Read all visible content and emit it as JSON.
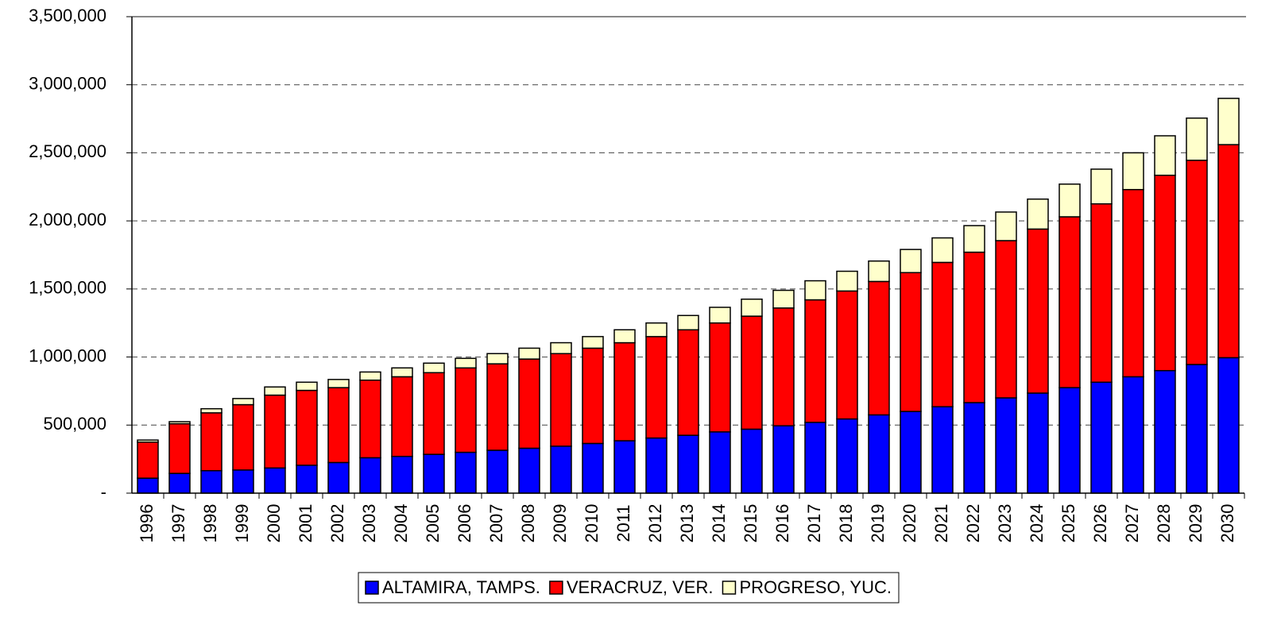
{
  "chart_data": {
    "type": "stacked_bar",
    "categories": [
      "1996",
      "1997",
      "1998",
      "1999",
      "2000",
      "2001",
      "2002",
      "2003",
      "2004",
      "2005",
      "2006",
      "2007",
      "2008",
      "2009",
      "2010",
      "2011",
      "2012",
      "2013",
      "2014",
      "2015",
      "2016",
      "2017",
      "2018",
      "2019",
      "2020",
      "2021",
      "2022",
      "2023",
      "2024",
      "2025",
      "2026",
      "2027",
      "2028",
      "2029",
      "2030"
    ],
    "series": [
      {
        "name": "ALTAMIRA, TAMPS.",
        "color": "#0000ff",
        "values": [
          110000,
          145000,
          165000,
          170000,
          185000,
          205000,
          225000,
          260000,
          270000,
          285000,
          300000,
          315000,
          330000,
          345000,
          365000,
          385000,
          405000,
          425000,
          450000,
          470000,
          495000,
          520000,
          545000,
          575000,
          600000,
          635000,
          665000,
          700000,
          735000,
          775000,
          815000,
          855000,
          900000,
          945000,
          995000
        ]
      },
      {
        "name": "VERACRUZ, VER.",
        "color": "#ff0000",
        "values": [
          265000,
          365000,
          425000,
          480000,
          535000,
          550000,
          550000,
          570000,
          585000,
          600000,
          620000,
          635000,
          655000,
          680000,
          700000,
          720000,
          745000,
          775000,
          800000,
          830000,
          865000,
          900000,
          940000,
          980000,
          1020000,
          1060000,
          1105000,
          1155000,
          1205000,
          1255000,
          1310000,
          1375000,
          1435000,
          1500000,
          1565000
        ]
      },
      {
        "name": "PROGRESO, YUC.",
        "color": "#ffffcc",
        "values": [
          15000,
          15000,
          30000,
          45000,
          60000,
          60000,
          60000,
          60000,
          65000,
          70000,
          70000,
          75000,
          80000,
          80000,
          85000,
          95000,
          100000,
          105000,
          115000,
          125000,
          130000,
          140000,
          145000,
          150000,
          170000,
          180000,
          195000,
          210000,
          220000,
          240000,
          255000,
          270000,
          290000,
          310000,
          340000
        ]
      }
    ],
    "ylim": [
      0,
      3500000
    ],
    "yticks": [
      {
        "value": 0,
        "label": "-"
      },
      {
        "value": 500000,
        "label": "500,000"
      },
      {
        "value": 1000000,
        "label": "1,000,000"
      },
      {
        "value": 1500000,
        "label": "1,500,000"
      },
      {
        "value": 2000000,
        "label": "2,000,000"
      },
      {
        "value": 2500000,
        "label": "2,500,000"
      },
      {
        "value": 3000000,
        "label": "3,000,000"
      },
      {
        "value": 3500000,
        "label": "3,500,000"
      }
    ],
    "grid": true,
    "legend": "bottom"
  }
}
